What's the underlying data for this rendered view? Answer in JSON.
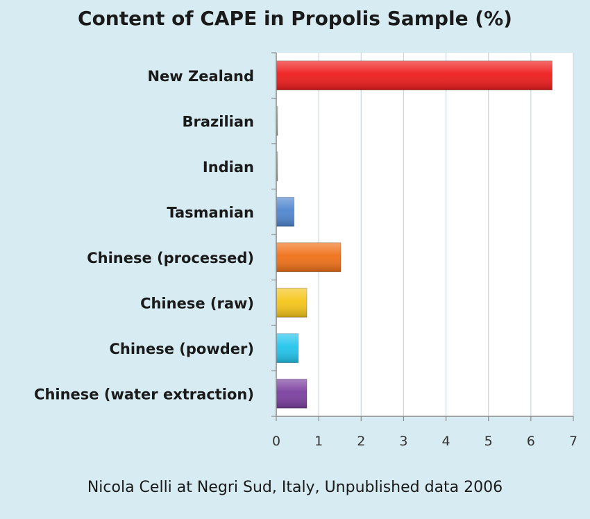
{
  "chart_data": {
    "type": "bar",
    "orientation": "horizontal",
    "title": "Content of CAPE in Propolis Sample (%)",
    "xlabel": "",
    "ylabel": "",
    "categories": [
      "New Zealand",
      "Brazilian",
      "Indian",
      "Tasmanian",
      "Chinese (processed)",
      "Chinese (raw)",
      "Chinese (powder)",
      "Chinese (water extraction)"
    ],
    "values": [
      6.5,
      0.03,
      0.03,
      0.42,
      1.52,
      0.72,
      0.52,
      0.72
    ],
    "colors": [
      "#ee1c1c",
      "#a8b870",
      "#a8b870",
      "#4f86cf",
      "#f07018",
      "#f5c518",
      "#22c4ec",
      "#7b3fa0"
    ],
    "xlim": [
      0,
      7
    ],
    "xticks": [
      "0",
      "1",
      "2",
      "3",
      "4",
      "5",
      "6",
      "7"
    ],
    "grid": "vertical",
    "source": "Nicola Celli at Negri Sud, Italy, Unpublished data 2006"
  }
}
